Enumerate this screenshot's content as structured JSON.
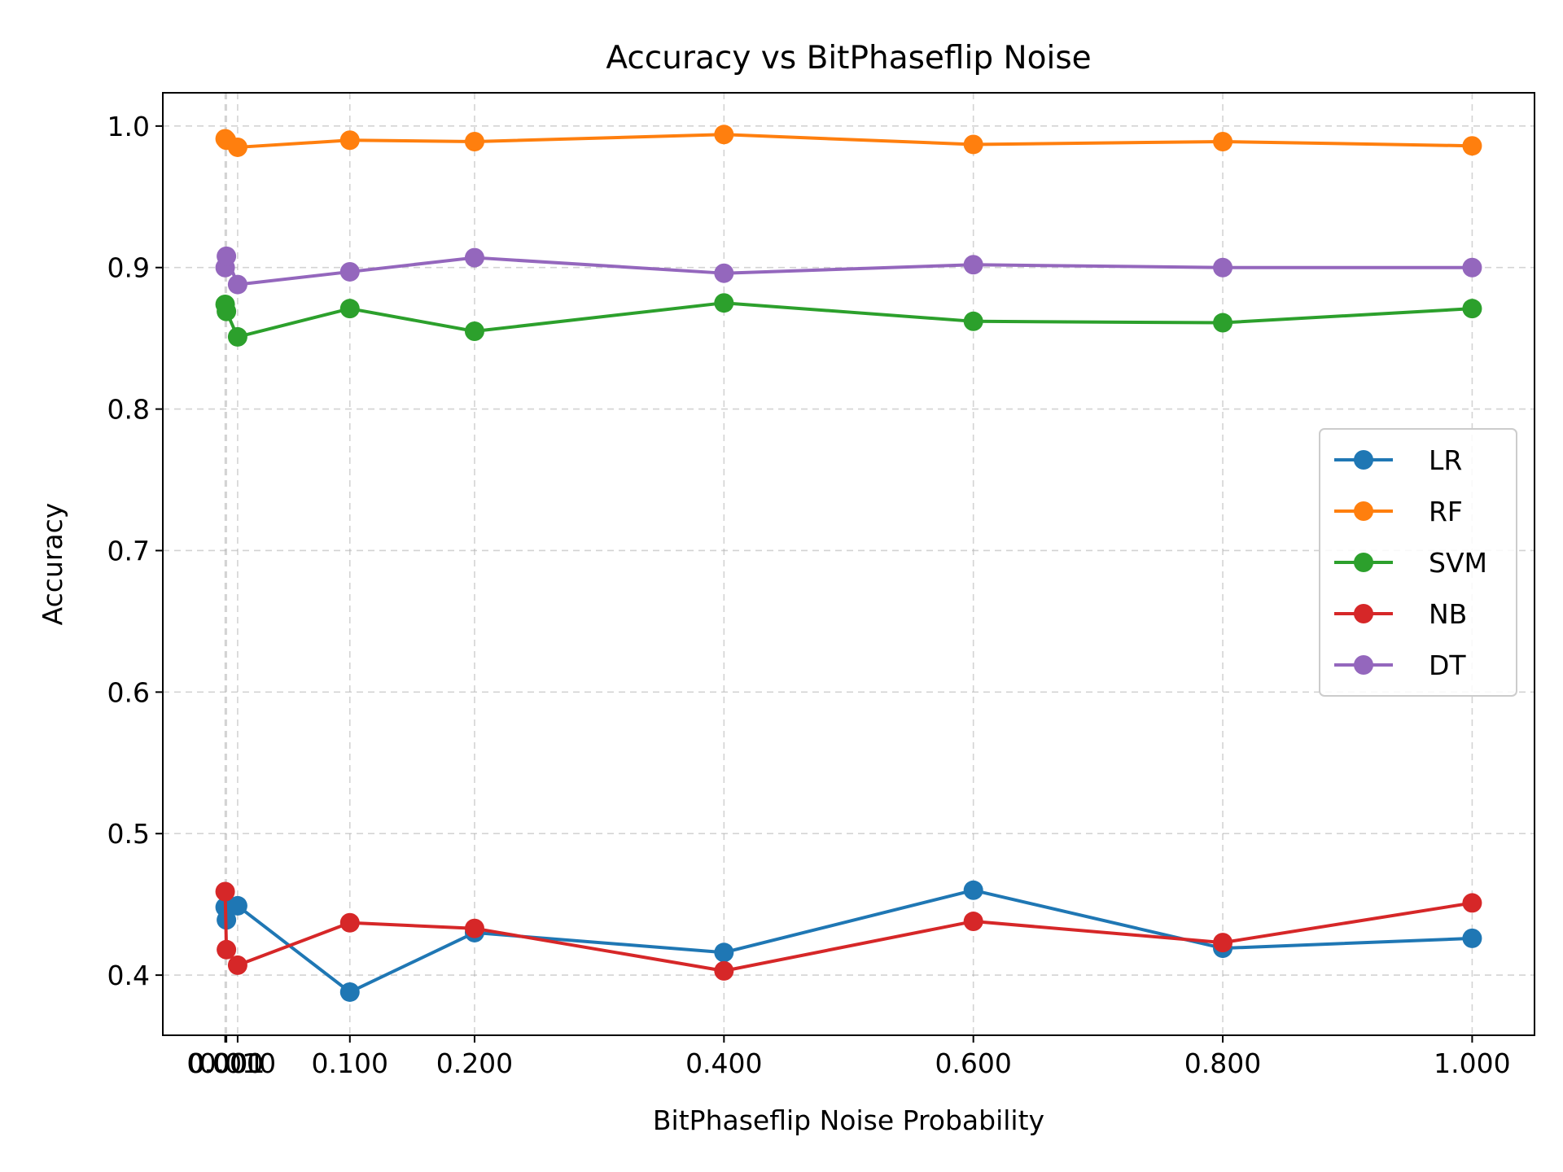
{
  "chart_data": {
    "type": "line",
    "title": "Accuracy vs BitPhaseflip Noise",
    "xlabel": "BitPhaseflip Noise Probability",
    "ylabel": "Accuracy",
    "xlim": [
      -0.05,
      1.05
    ],
    "ylim": [
      0.3575,
      1.0235
    ],
    "x": [
      0.0,
      0.001,
      0.01,
      0.1,
      0.2,
      0.4,
      0.6,
      0.8,
      1.0
    ],
    "xticks": [
      0.0,
      0.001,
      0.01,
      0.1,
      0.2,
      0.4,
      0.6,
      0.8,
      1.0
    ],
    "xtick_labels": [
      "0.000",
      "0.001",
      "0.010",
      "0.100",
      "0.200",
      "0.400",
      "0.600",
      "0.800",
      "1.000"
    ],
    "yticks": [
      0.4,
      0.5,
      0.6,
      0.7,
      0.8,
      0.9,
      1.0
    ],
    "ytick_labels": [
      "0.4",
      "0.5",
      "0.6",
      "0.7",
      "0.8",
      "0.9",
      "1.0"
    ],
    "grid": true,
    "legend_position": "center-right",
    "series": [
      {
        "name": "LR",
        "color": "#1f77b4",
        "values": [
          0.448,
          0.439,
          0.449,
          0.388,
          0.43,
          0.416,
          0.46,
          0.419,
          0.426
        ]
      },
      {
        "name": "RF",
        "color": "#ff7f0e",
        "values": [
          0.991,
          0.99,
          0.985,
          0.99,
          0.989,
          0.994,
          0.987,
          0.989,
          0.986
        ]
      },
      {
        "name": "SVM",
        "color": "#2ca02c",
        "values": [
          0.874,
          0.869,
          0.851,
          0.871,
          0.855,
          0.875,
          0.862,
          0.861,
          0.871
        ]
      },
      {
        "name": "NB",
        "color": "#d62728",
        "values": [
          0.459,
          0.418,
          0.407,
          0.437,
          0.433,
          0.403,
          0.438,
          0.423,
          0.451
        ]
      },
      {
        "name": "DT",
        "color": "#9467bd",
        "values": [
          0.9,
          0.908,
          0.888,
          0.897,
          0.907,
          0.896,
          0.902,
          0.9,
          0.9
        ]
      }
    ]
  }
}
